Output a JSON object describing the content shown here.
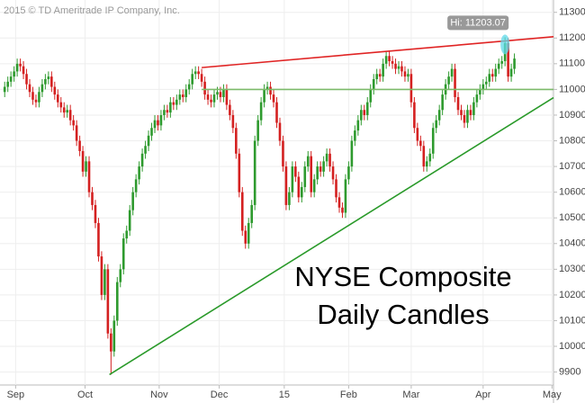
{
  "chart_data": {
    "type": "candlestick",
    "title": [
      "NYSE Composite",
      "Daily Candles"
    ],
    "watermark": "2015 © TD Ameritrade IP Company, Inc.",
    "up_color": "#2e9a2e",
    "down_color": "#d42020",
    "xlim": [
      -1.5,
      175.5
    ],
    "xticks": [
      {
        "value": 3.5,
        "label": "Sep"
      },
      {
        "value": 25.7,
        "label": "Oct"
      },
      {
        "value": 49.4,
        "label": "Nov"
      },
      {
        "value": 68.6,
        "label": "Dec"
      },
      {
        "value": 89.4,
        "label": "15"
      },
      {
        "value": 110,
        "label": "Feb"
      },
      {
        "value": 130,
        "label": "Mar"
      },
      {
        "value": 153,
        "label": "Apr"
      },
      {
        "value": 175,
        "label": "May"
      }
    ],
    "ylim": [
      9860,
      11320
    ],
    "yticks": [
      9900,
      10000,
      10100,
      10200,
      10300,
      10400,
      10500,
      10600,
      10700,
      10800,
      10900,
      11000,
      11100,
      11200,
      11300
    ],
    "grid": true,
    "open": [
      10990,
      11010,
      11030,
      11050,
      11070,
      11100,
      11090,
      11060,
      11020,
      10990,
      10960,
      10950,
      10990,
      11020,
      11040,
      11050,
      11010,
      10980,
      10950,
      10930,
      10910,
      10920,
      10880,
      10860,
      10800,
      10760,
      10680,
      10720,
      10600,
      10550,
      10480,
      10350,
      10200,
      10300,
      10050,
      9980,
      10100,
      10250,
      10300,
      10420,
      10450,
      10530,
      10600,
      10650,
      10700,
      10750,
      10780,
      10820,
      10850,
      10880,
      10860,
      10900,
      10920,
      10910,
      10950,
      10940,
      10960,
      10980,
      10970,
      11000,
      11020,
      11060,
      11070,
      11060,
      11030,
      10980,
      10960,
      10950,
      10980,
      10990,
      10970,
      11000,
      10940,
      10900,
      10850,
      10750,
      10600,
      10450,
      10400,
      10480,
      10550,
      10800,
      10880,
      10950,
      11000,
      11010,
      10980,
      10950,
      10870,
      10800,
      10700,
      10550,
      10600,
      10700,
      10660,
      10580,
      10620,
      10700,
      10740,
      10600,
      10650,
      10700,
      10680,
      10720,
      10750,
      10700,
      10650,
      10580,
      10540,
      10520,
      10650,
      10700,
      10800,
      10840,
      10880,
      10920,
      10900,
      10950,
      11000,
      11040,
      11060,
      11050,
      11100,
      11130,
      11110,
      11100,
      11080,
      11090,
      11070,
      11050,
      11060,
      10950,
      10850,
      10800,
      10780,
      10700,
      10720,
      10750,
      10850,
      10880,
      10920,
      10980,
      11020,
      11050,
      11080,
      10970,
      10920,
      10900,
      10870,
      10920,
      10900,
      10950,
      10980,
      11000,
      11020,
      11030,
      11060,
      11050,
      11080,
      11100,
      11110,
      11180,
      11050,
      11080
    ],
    "high": [
      11030,
      11050,
      11070,
      11090,
      11120,
      11120,
      11110,
      11080,
      11040,
      11010,
      10980,
      11010,
      11040,
      11060,
      11070,
      11070,
      11030,
      11000,
      10970,
      10950,
      10940,
      10940,
      10900,
      10880,
      10820,
      10780,
      10740,
      10740,
      10620,
      10570,
      10500,
      10370,
      10320,
      10320,
      10070,
      10120,
      10270,
      10320,
      10440,
      10470,
      10550,
      10620,
      10670,
      10720,
      10770,
      10800,
      10840,
      10870,
      10900,
      10900,
      10920,
      10940,
      10940,
      10970,
      10970,
      10980,
      11000,
      11000,
      11020,
      11040,
      11080,
      11090,
      11090,
      11080,
      11050,
      11000,
      10980,
      11000,
      11010,
      11010,
      11020,
      11020,
      10960,
      10920,
      10870,
      10770,
      10620,
      10470,
      10500,
      10570,
      10820,
      10900,
      10970,
      11020,
      11030,
      11030,
      11000,
      10970,
      10890,
      10820,
      10720,
      10620,
      10720,
      10720,
      10680,
      10640,
      10720,
      10760,
      10760,
      10670,
      10720,
      10720,
      10740,
      10770,
      10770,
      10720,
      10670,
      10600,
      10560,
      10670,
      10720,
      10820,
      10860,
      10900,
      10940,
      10940,
      10970,
      11020,
      11060,
      11080,
      11080,
      11120,
      11150,
      11150,
      11130,
      11120,
      11110,
      11110,
      11090,
      11080,
      11080,
      10970,
      10870,
      10820,
      10800,
      10740,
      10770,
      10870,
      10900,
      10940,
      11000,
      11040,
      11070,
      11100,
      11100,
      10990,
      10940,
      10920,
      10940,
      10940,
      10970,
      11000,
      11020,
      11040,
      11050,
      11080,
      11080,
      11100,
      11120,
      11130,
      11203.07,
      11200,
      11100,
      11140
    ],
    "low": [
      10970,
      10990,
      11010,
      11030,
      11050,
      11070,
      11040,
      11000,
      10970,
      10940,
      10930,
      10930,
      10970,
      11000,
      11020,
      10990,
      10960,
      10930,
      10910,
      10890,
      10890,
      10860,
      10840,
      10780,
      10740,
      10660,
      10660,
      10580,
      10530,
      10460,
      10330,
      10180,
      10180,
      10030,
      9890,
      9960,
      10080,
      10230,
      10280,
      10400,
      10430,
      10510,
      10580,
      10630,
      10680,
      10730,
      10760,
      10800,
      10830,
      10840,
      10840,
      10880,
      10890,
      10890,
      10920,
      10920,
      10940,
      10950,
      10950,
      10980,
      11000,
      11040,
      11040,
      11010,
      10960,
      10940,
      10930,
      10930,
      10960,
      10950,
      10950,
      10920,
      10880,
      10830,
      10730,
      10580,
      10430,
      10380,
      10380,
      10460,
      10530,
      10780,
      10860,
      10930,
      10980,
      10960,
      10930,
      10850,
      10780,
      10680,
      10530,
      10530,
      10580,
      10640,
      10560,
      10560,
      10600,
      10680,
      10580,
      10580,
      10630,
      10660,
      10660,
      10700,
      10680,
      10630,
      10560,
      10520,
      10500,
      10500,
      10630,
      10680,
      10780,
      10820,
      10860,
      10880,
      10880,
      10930,
      10980,
      11020,
      11030,
      11030,
      11080,
      11090,
      11080,
      11060,
      11060,
      11050,
      11030,
      11030,
      10930,
      10830,
      10780,
      10760,
      10680,
      10680,
      10700,
      10730,
      10830,
      10860,
      10900,
      10960,
      11000,
      11030,
      10950,
      10900,
      10880,
      10850,
      10850,
      10880,
      10880,
      10930,
      10960,
      10980,
      11000,
      11010,
      11030,
      11030,
      11060,
      11080,
      11090,
      11030,
      11030,
      11060
    ],
    "close": [
      11010,
      11030,
      11050,
      11070,
      11100,
      11090,
      11060,
      11020,
      10990,
      10960,
      10950,
      10990,
      11020,
      11040,
      11050,
      11010,
      10980,
      10950,
      10930,
      10910,
      10920,
      10880,
      10860,
      10800,
      10760,
      10680,
      10720,
      10600,
      10550,
      10480,
      10350,
      10200,
      10300,
      10050,
      9980,
      10100,
      10250,
      10300,
      10420,
      10450,
      10530,
      10600,
      10650,
      10700,
      10750,
      10780,
      10820,
      10850,
      10880,
      10860,
      10900,
      10920,
      10910,
      10950,
      10940,
      10960,
      10980,
      10970,
      11000,
      11020,
      11060,
      11070,
      11060,
      11030,
      10980,
      10960,
      10950,
      10980,
      10990,
      10970,
      11000,
      10940,
      10900,
      10850,
      10750,
      10600,
      10450,
      10400,
      10480,
      10550,
      10800,
      10880,
      10950,
      11000,
      11010,
      10980,
      10950,
      10870,
      10800,
      10700,
      10550,
      10600,
      10700,
      10660,
      10580,
      10620,
      10700,
      10740,
      10600,
      10650,
      10700,
      10680,
      10720,
      10750,
      10700,
      10650,
      10580,
      10540,
      10520,
      10650,
      10700,
      10800,
      10840,
      10880,
      10920,
      10900,
      10950,
      11000,
      11040,
      11060,
      11050,
      11100,
      11130,
      11110,
      11100,
      11080,
      11090,
      11070,
      11050,
      11060,
      10950,
      10850,
      10800,
      10780,
      10700,
      10720,
      10750,
      10850,
      10880,
      10920,
      10980,
      11020,
      11050,
      11080,
      10970,
      10920,
      10900,
      10870,
      10920,
      10900,
      10950,
      10980,
      11000,
      11020,
      11030,
      11060,
      11050,
      11080,
      11100,
      11110,
      11180,
      11050,
      11080,
      11120
    ],
    "lines": [
      {
        "color": "#e02424",
        "x": [
          63,
          175.5
        ],
        "y": [
          11085,
          11205
        ]
      },
      {
        "color": "#7cba6a",
        "x": [
          63,
          175.5
        ],
        "y": [
          11000,
          11000
        ]
      },
      {
        "color": "#2a9a2a",
        "x": [
          33.5,
          175.5
        ],
        "y": [
          9890,
          10968
        ]
      }
    ],
    "annotations": [
      {
        "label": "Hi: 11203.07",
        "x": 160,
        "y": 11203.07
      }
    ]
  }
}
